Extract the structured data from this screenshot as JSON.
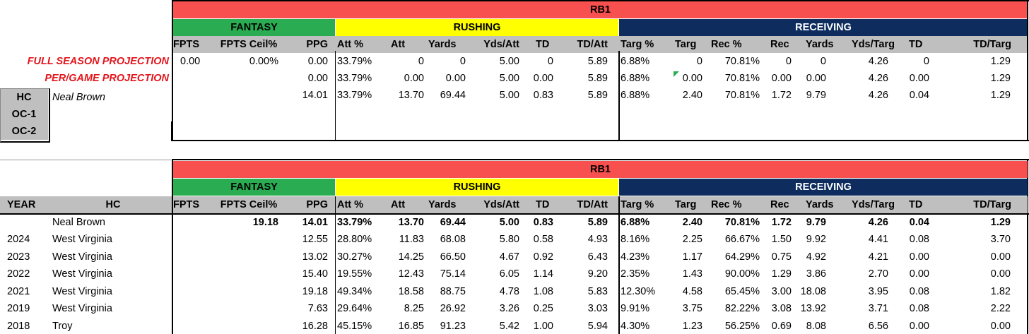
{
  "top": {
    "group_title": "RB1",
    "sections": {
      "fantasy": "FANTASY",
      "rushing": "RUSHING",
      "receiving": "RECEIVING"
    },
    "columns": [
      "FPTS",
      "FPTS Ceil%",
      "PPG",
      "Att %",
      "Att",
      "Yards",
      "Yds/Att",
      "TD",
      "TD/Att",
      "Targ %",
      "Targ",
      "Rec %",
      "Rec",
      "Yards",
      "Yds/Targ",
      "TD",
      "TD/Targ"
    ],
    "row_labels": {
      "full": "FULL SEASON PROJECTION",
      "per_game": "PER/GAME PROJECTION"
    },
    "coach_labels": [
      "HC",
      "OC-1",
      "OC-2"
    ],
    "coach_name": "Neal Brown",
    "rows": [
      [
        "0.00",
        "0.00%",
        "0.00",
        "33.79%",
        "0",
        "0",
        "5.00",
        "0",
        "5.89",
        "6.88%",
        "0",
        "70.81%",
        "0",
        "0",
        "4.26",
        "0",
        "1.29"
      ],
      [
        "",
        "",
        "0.00",
        "33.79%",
        "0.00",
        "0.00",
        "5.00",
        "0.00",
        "5.89",
        "6.88%",
        "0.00",
        "70.81%",
        "0.00",
        "0.00",
        "4.26",
        "0.00",
        "1.29"
      ],
      [
        "",
        "",
        "14.01",
        "33.79%",
        "13.70",
        "69.44",
        "5.00",
        "0.83",
        "5.89",
        "6.88%",
        "2.40",
        "70.81%",
        "1.72",
        "9.79",
        "4.26",
        "0.04",
        "1.29"
      ]
    ]
  },
  "bottom": {
    "group_title": "RB1",
    "sections": {
      "fantasy": "FANTASY",
      "rushing": "RUSHING",
      "receiving": "RECEIVING"
    },
    "left_headers": [
      "YEAR",
      "HC"
    ],
    "columns": [
      "FPTS",
      "FPTS Ceil%",
      "PPG",
      "Att %",
      "Att",
      "Yards",
      "Yds/Att",
      "TD",
      "TD/Att",
      "Targ %",
      "Targ",
      "Rec %",
      "Rec",
      "Yards",
      "Yds/Targ",
      "TD",
      "TD/Targ"
    ],
    "summary": {
      "name": "Neal Brown",
      "values": [
        "",
        "19.18",
        "14.01",
        "33.79%",
        "13.70",
        "69.44",
        "5.00",
        "0.83",
        "5.89",
        "6.88%",
        "2.40",
        "70.81%",
        "1.72",
        "9.79",
        "4.26",
        "0.04",
        "1.29"
      ]
    },
    "rows": [
      {
        "year": "2024",
        "team": "West Virginia",
        "values": [
          "",
          "",
          "12.55",
          "28.80%",
          "11.83",
          "68.08",
          "5.80",
          "0.58",
          "4.93",
          "8.16%",
          "2.25",
          "66.67%",
          "1.50",
          "9.92",
          "4.41",
          "0.08",
          "3.70"
        ]
      },
      {
        "year": "2023",
        "team": "West Virginia",
        "values": [
          "",
          "",
          "13.02",
          "30.27%",
          "14.25",
          "66.50",
          "4.67",
          "0.92",
          "6.43",
          "4.23%",
          "1.17",
          "64.29%",
          "0.75",
          "4.92",
          "4.21",
          "0.00",
          "0.00"
        ]
      },
      {
        "year": "2022",
        "team": "West Virginia",
        "values": [
          "",
          "",
          "15.40",
          "19.55%",
          "12.43",
          "75.14",
          "6.05",
          "1.14",
          "9.20",
          "2.35%",
          "1.43",
          "90.00%",
          "1.29",
          "3.86",
          "2.70",
          "0.00",
          "0.00"
        ]
      },
      {
        "year": "2021",
        "team": "West Virginia",
        "values": [
          "",
          "",
          "19.18",
          "49.34%",
          "18.58",
          "88.75",
          "4.78",
          "1.08",
          "5.83",
          "12.30%",
          "4.58",
          "65.45%",
          "3.00",
          "18.08",
          "3.95",
          "0.08",
          "1.82"
        ]
      },
      {
        "year": "2019",
        "team": "West Virginia",
        "values": [
          "",
          "",
          "7.63",
          "29.64%",
          "8.25",
          "26.92",
          "3.26",
          "0.25",
          "3.03",
          "9.91%",
          "3.75",
          "82.22%",
          "3.08",
          "13.92",
          "3.71",
          "0.08",
          "2.22"
        ]
      },
      {
        "year": "2018",
        "team": "Troy",
        "values": [
          "",
          "",
          "16.28",
          "45.15%",
          "16.85",
          "91.23",
          "5.42",
          "1.00",
          "5.94",
          "4.30%",
          "1.23",
          "56.25%",
          "0.69",
          "8.08",
          "6.56",
          "0.00",
          "0.00"
        ]
      }
    ]
  },
  "colors": {
    "title_band": "#f8504f",
    "fantasy": "#2aad52",
    "rushing": "#ffff00",
    "receiving": "#0e2d5e",
    "projection_label": "#e4161d",
    "coach_box": "#bfbfbf"
  }
}
